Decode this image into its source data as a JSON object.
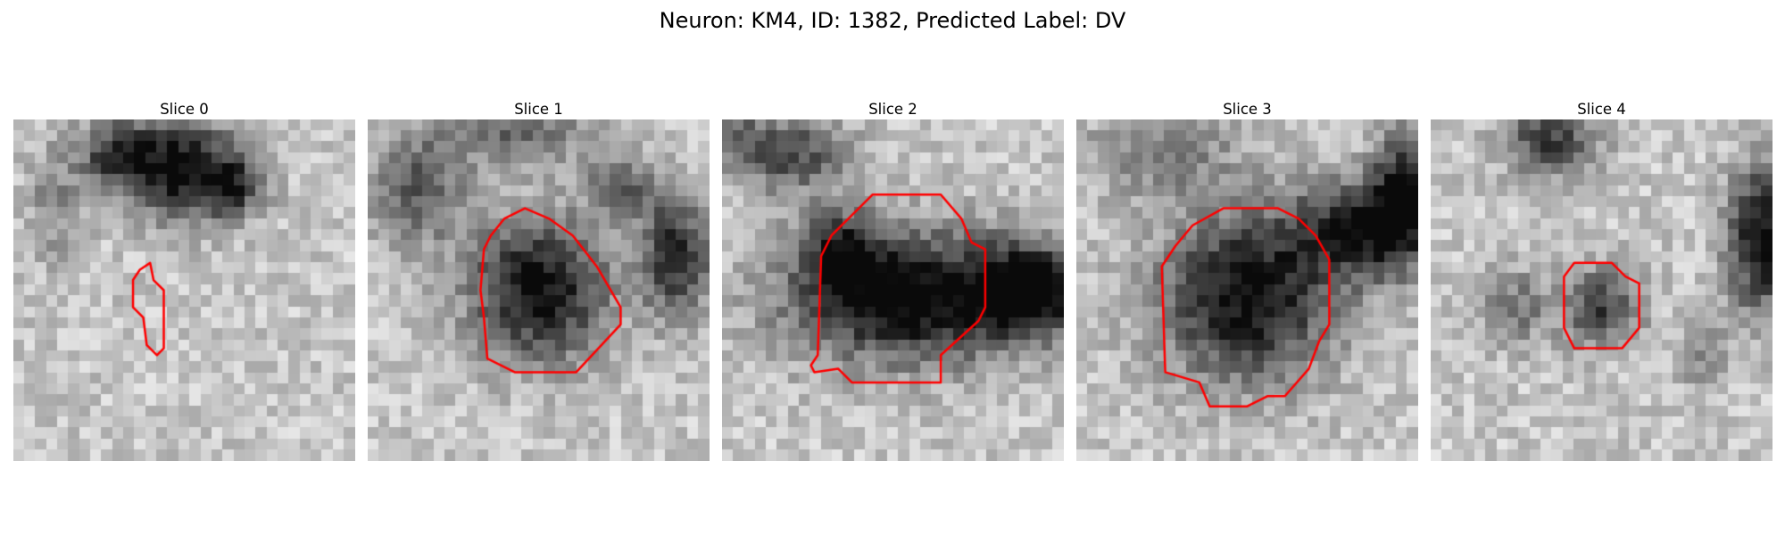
{
  "figure": {
    "title": "Neuron: KM4, ID: 1382, Predicted Label: DV",
    "neuron": "KM4",
    "id": 1382,
    "predicted_label": "DV"
  },
  "colors": {
    "contour": "#ff0000",
    "colormap": "grayscale"
  },
  "slices": [
    {
      "title": "Slice 0",
      "contour": [
        [
          0.37,
          0.44
        ],
        [
          0.4,
          0.42
        ],
        [
          0.41,
          0.47
        ],
        [
          0.44,
          0.5
        ],
        [
          0.44,
          0.67
        ],
        [
          0.42,
          0.69
        ],
        [
          0.39,
          0.66
        ],
        [
          0.38,
          0.58
        ],
        [
          0.35,
          0.55
        ],
        [
          0.35,
          0.47
        ]
      ],
      "blobs": [
        [
          0.5,
          0.15,
          0.12,
          0.1,
          0.85
        ],
        [
          0.3,
          0.1,
          0.08,
          0.07,
          0.55
        ],
        [
          0.65,
          0.2,
          0.06,
          0.06,
          0.45
        ],
        [
          0.12,
          0.25,
          0.06,
          0.12,
          0.25
        ]
      ]
    },
    {
      "title": "Slice 1",
      "contour": [
        [
          0.4,
          0.29
        ],
        [
          0.46,
          0.26
        ],
        [
          0.53,
          0.29
        ],
        [
          0.6,
          0.34
        ],
        [
          0.67,
          0.43
        ],
        [
          0.74,
          0.55
        ],
        [
          0.74,
          0.6
        ],
        [
          0.61,
          0.74
        ],
        [
          0.43,
          0.74
        ],
        [
          0.35,
          0.7
        ],
        [
          0.34,
          0.58
        ],
        [
          0.33,
          0.5
        ],
        [
          0.34,
          0.38
        ],
        [
          0.36,
          0.34
        ]
      ],
      "blobs": [
        [
          0.5,
          0.5,
          0.14,
          0.14,
          0.85
        ],
        [
          0.15,
          0.2,
          0.1,
          0.12,
          0.45
        ],
        [
          0.9,
          0.4,
          0.07,
          0.12,
          0.75
        ],
        [
          0.45,
          0.05,
          0.15,
          0.06,
          0.4
        ],
        [
          0.75,
          0.2,
          0.08,
          0.06,
          0.4
        ]
      ]
    },
    {
      "title": "Slice 2",
      "contour": [
        [
          0.32,
          0.34
        ],
        [
          0.44,
          0.22
        ],
        [
          0.64,
          0.22
        ],
        [
          0.7,
          0.29
        ],
        [
          0.73,
          0.36
        ],
        [
          0.77,
          0.38
        ],
        [
          0.77,
          0.55
        ],
        [
          0.75,
          0.59
        ],
        [
          0.64,
          0.69
        ],
        [
          0.64,
          0.77
        ],
        [
          0.38,
          0.77
        ],
        [
          0.34,
          0.73
        ],
        [
          0.27,
          0.74
        ],
        [
          0.26,
          0.72
        ],
        [
          0.28,
          0.69
        ],
        [
          0.29,
          0.4
        ]
      ],
      "blobs": [
        [
          0.55,
          0.52,
          0.25,
          0.13,
          0.95
        ],
        [
          0.9,
          0.5,
          0.1,
          0.09,
          0.85
        ],
        [
          0.2,
          0.1,
          0.12,
          0.08,
          0.55
        ],
        [
          0.35,
          0.38,
          0.08,
          0.08,
          0.55
        ],
        [
          0.05,
          0.05,
          0.05,
          0.05,
          0.3
        ]
      ]
    },
    {
      "title": "Slice 3",
      "contour": [
        [
          0.29,
          0.37
        ],
        [
          0.34,
          0.31
        ],
        [
          0.43,
          0.26
        ],
        [
          0.59,
          0.26
        ],
        [
          0.65,
          0.29
        ],
        [
          0.7,
          0.34
        ],
        [
          0.74,
          0.41
        ],
        [
          0.74,
          0.6
        ],
        [
          0.71,
          0.65
        ],
        [
          0.68,
          0.73
        ],
        [
          0.61,
          0.81
        ],
        [
          0.56,
          0.81
        ],
        [
          0.5,
          0.84
        ],
        [
          0.39,
          0.84
        ],
        [
          0.36,
          0.77
        ],
        [
          0.26,
          0.74
        ],
        [
          0.25,
          0.43
        ]
      ],
      "blobs": [
        [
          0.5,
          0.52,
          0.18,
          0.17,
          0.85
        ],
        [
          0.85,
          0.32,
          0.14,
          0.1,
          0.8
        ],
        [
          0.95,
          0.2,
          0.05,
          0.12,
          0.7
        ],
        [
          0.25,
          0.1,
          0.15,
          0.08,
          0.35
        ]
      ]
    },
    {
      "title": "Slice 4",
      "contour": [
        [
          0.39,
          0.46
        ],
        [
          0.42,
          0.42
        ],
        [
          0.53,
          0.42
        ],
        [
          0.57,
          0.46
        ],
        [
          0.61,
          0.48
        ],
        [
          0.61,
          0.61
        ],
        [
          0.56,
          0.67
        ],
        [
          0.42,
          0.67
        ],
        [
          0.39,
          0.61
        ],
        [
          0.39,
          0.52
        ]
      ],
      "blobs": [
        [
          0.5,
          0.55,
          0.08,
          0.08,
          0.6
        ],
        [
          0.97,
          0.35,
          0.07,
          0.15,
          0.85
        ],
        [
          0.35,
          0.06,
          0.1,
          0.07,
          0.6
        ],
        [
          0.25,
          0.55,
          0.07,
          0.08,
          0.35
        ],
        [
          0.8,
          0.7,
          0.06,
          0.06,
          0.25
        ]
      ]
    }
  ]
}
